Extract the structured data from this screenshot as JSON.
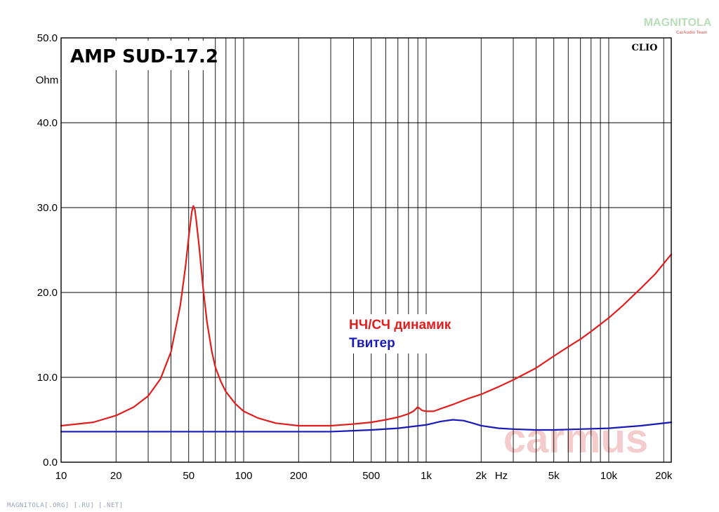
{
  "chart_data": {
    "type": "line",
    "title": "AMP SUD-17.2",
    "analyzer_label": "CLIO",
    "ylabel": "Ohm",
    "xlabel": "Hz",
    "x_scale": "log",
    "xlim": [
      10,
      22000
    ],
    "ylim": [
      0,
      50
    ],
    "grid": true,
    "y_ticks": [
      "0.0",
      "10.0",
      "20.0",
      "30.0",
      "40.0",
      "50.0"
    ],
    "x_ticks": [
      "10",
      "20",
      "50",
      "100",
      "200",
      "500",
      "1k",
      "2k",
      "5k",
      "10k",
      "20k"
    ],
    "legend_placement": "center",
    "series": [
      {
        "name": "НЧ/СЧ динамик",
        "color": "#e01e1e",
        "x": [
          10,
          15,
          20,
          25,
          30,
          35,
          40,
          45,
          48,
          50,
          52,
          53,
          54,
          55,
          57,
          60,
          63,
          67,
          70,
          75,
          80,
          90,
          100,
          120,
          150,
          200,
          300,
          400,
          500,
          600,
          700,
          800,
          850,
          900,
          950,
          1000,
          1100,
          1200,
          1400,
          1700,
          2000,
          2500,
          3000,
          4000,
          5000,
          6000,
          7000,
          8000,
          10000,
          12000,
          15000,
          18000,
          22000
        ],
        "y": [
          4.3,
          4.7,
          5.5,
          6.5,
          7.8,
          9.8,
          13.0,
          18.5,
          23.0,
          26.5,
          29.5,
          30.2,
          29.8,
          28.5,
          25.5,
          20.5,
          16.5,
          13.0,
          11.2,
          9.5,
          8.3,
          6.9,
          6.0,
          5.2,
          4.6,
          4.3,
          4.3,
          4.5,
          4.7,
          5.0,
          5.3,
          5.7,
          6.0,
          6.5,
          6.1,
          6.0,
          6.0,
          6.3,
          6.8,
          7.5,
          8.0,
          8.9,
          9.7,
          11.1,
          12.5,
          13.6,
          14.5,
          15.4,
          17.0,
          18.5,
          20.5,
          22.2,
          24.5
        ]
      },
      {
        "name": "Твитер",
        "color": "#1a1ab8",
        "x": [
          10,
          100,
          200,
          300,
          500,
          700,
          1000,
          1200,
          1400,
          1600,
          1800,
          2000,
          2500,
          3000,
          4000,
          5000,
          7000,
          10000,
          15000,
          22000
        ],
        "y": [
          3.6,
          3.6,
          3.6,
          3.6,
          3.8,
          4.0,
          4.4,
          4.8,
          5.0,
          4.9,
          4.6,
          4.3,
          4.0,
          3.9,
          3.8,
          3.8,
          3.9,
          4.0,
          4.3,
          4.7
        ]
      }
    ]
  },
  "watermarks": {
    "center_mark": "carmus",
    "corner_brand": "MAGNITOLA",
    "corner_sub": "CarAudio Team"
  },
  "footer": "MAGNITOLA[.ORG] [.RU] [.NET]",
  "colors": {
    "grid": "#000000",
    "background": "#ffffff",
    "watermark": "#f4cccc"
  }
}
